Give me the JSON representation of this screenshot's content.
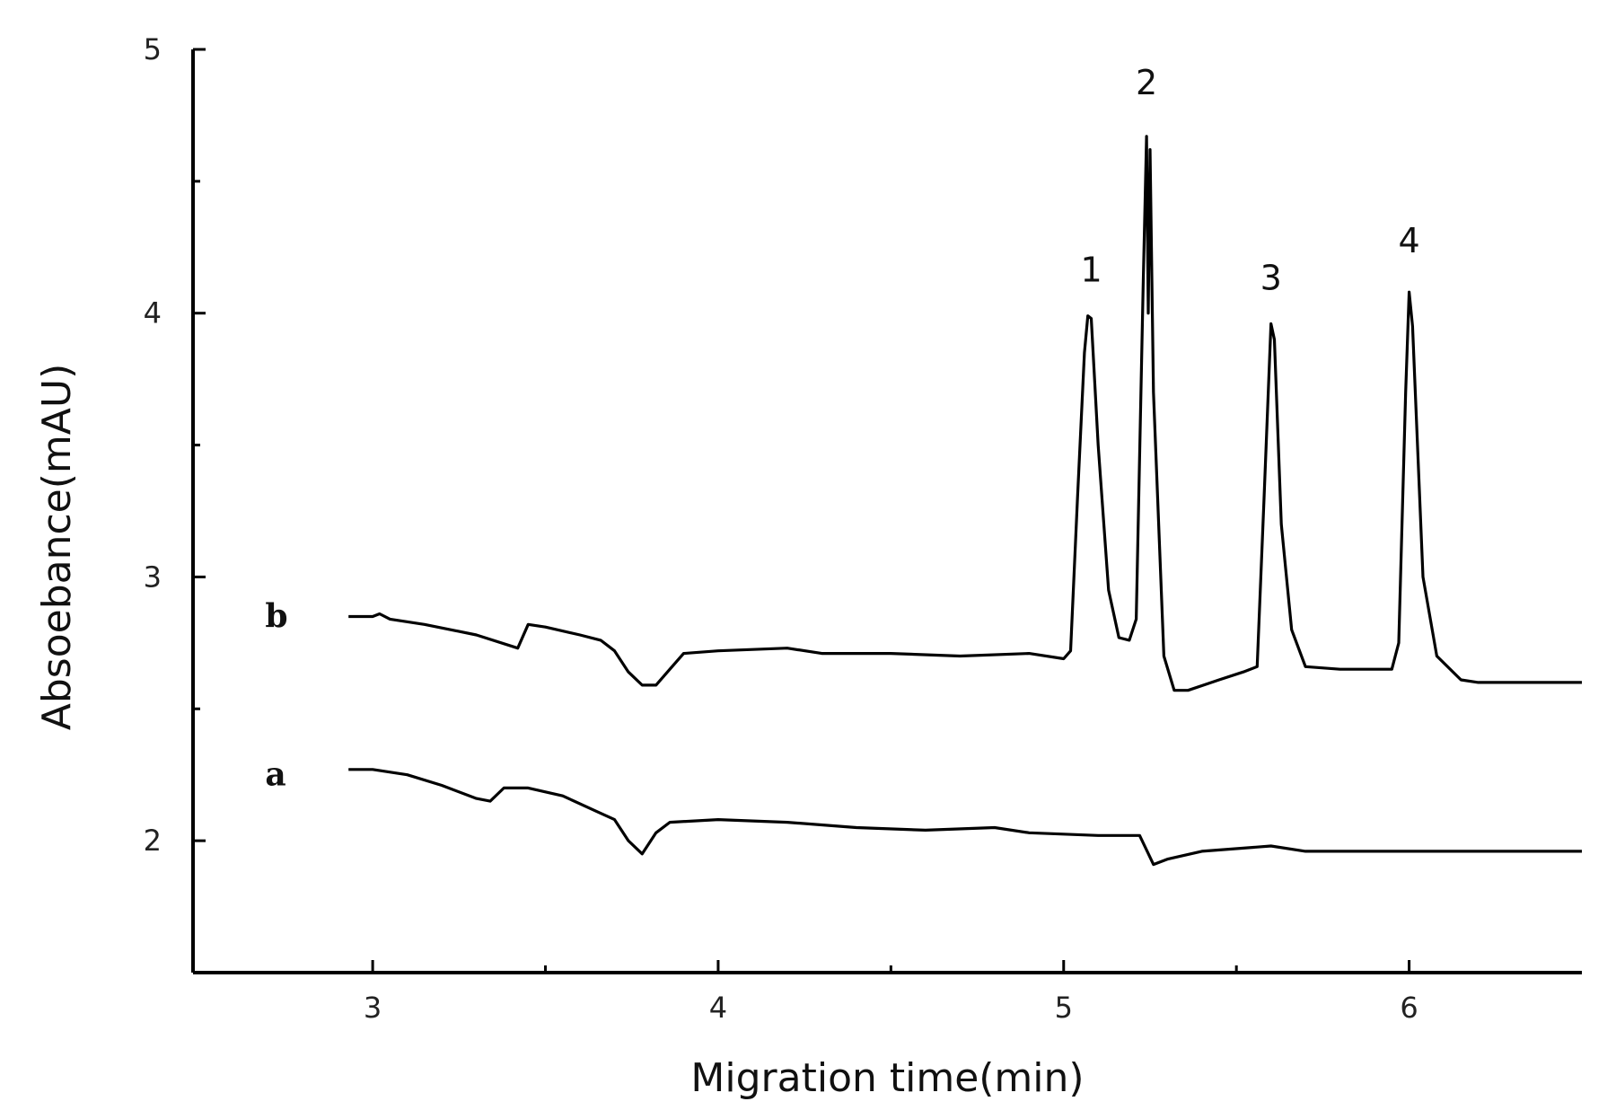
{
  "chart_data": {
    "type": "line",
    "title": "",
    "xlabel": "Migration time(min)",
    "ylabel": "Absoebance(mAU)",
    "xlim": [
      2.48,
      6.5
    ],
    "ylim": [
      1.5,
      5.0
    ],
    "x_ticks": [
      3,
      4,
      5,
      6
    ],
    "x_tick_labels": [
      "3",
      "4",
      "5",
      "6"
    ],
    "x_minor_ticks": [
      3.5,
      4.5,
      5.5
    ],
    "y_ticks": [
      2,
      3,
      4,
      5
    ],
    "y_tick_labels": [
      "2",
      "3",
      "4",
      "5"
    ],
    "y_minor_ticks": [
      2.5,
      3.5,
      4.5
    ],
    "grid": false,
    "series": [
      {
        "name": "b",
        "label_at": [
          2.72,
          2.85
        ],
        "points": [
          [
            2.93,
            2.85
          ],
          [
            3.0,
            2.85
          ],
          [
            3.02,
            2.86
          ],
          [
            3.05,
            2.84
          ],
          [
            3.15,
            2.82
          ],
          [
            3.3,
            2.78
          ],
          [
            3.42,
            2.73
          ],
          [
            3.45,
            2.82
          ],
          [
            3.5,
            2.81
          ],
          [
            3.6,
            2.78
          ],
          [
            3.66,
            2.76
          ],
          [
            3.7,
            2.72
          ],
          [
            3.74,
            2.64
          ],
          [
            3.78,
            2.59
          ],
          [
            3.82,
            2.59
          ],
          [
            3.86,
            2.65
          ],
          [
            3.9,
            2.71
          ],
          [
            4.0,
            2.72
          ],
          [
            4.2,
            2.73
          ],
          [
            4.3,
            2.71
          ],
          [
            4.5,
            2.71
          ],
          [
            4.7,
            2.7
          ],
          [
            4.9,
            2.71
          ],
          [
            5.0,
            2.69
          ],
          [
            5.02,
            2.72
          ],
          [
            5.04,
            3.3
          ],
          [
            5.06,
            3.85
          ],
          [
            5.07,
            3.99
          ],
          [
            5.08,
            3.98
          ],
          [
            5.1,
            3.5
          ],
          [
            5.13,
            2.95
          ],
          [
            5.16,
            2.77
          ],
          [
            5.19,
            2.76
          ],
          [
            5.21,
            2.84
          ],
          [
            5.23,
            4.1
          ],
          [
            5.24,
            4.67
          ],
          [
            5.245,
            4.0
          ],
          [
            5.25,
            4.62
          ],
          [
            5.26,
            3.7
          ],
          [
            5.29,
            2.7
          ],
          [
            5.32,
            2.57
          ],
          [
            5.36,
            2.57
          ],
          [
            5.45,
            2.61
          ],
          [
            5.52,
            2.64
          ],
          [
            5.56,
            2.66
          ],
          [
            5.58,
            3.3
          ],
          [
            5.6,
            3.96
          ],
          [
            5.61,
            3.9
          ],
          [
            5.63,
            3.2
          ],
          [
            5.66,
            2.8
          ],
          [
            5.7,
            2.66
          ],
          [
            5.8,
            2.65
          ],
          [
            5.95,
            2.65
          ],
          [
            5.97,
            2.75
          ],
          [
            5.99,
            3.7
          ],
          [
            6.0,
            4.08
          ],
          [
            6.01,
            3.95
          ],
          [
            6.04,
            3.0
          ],
          [
            6.08,
            2.7
          ],
          [
            6.15,
            2.61
          ],
          [
            6.2,
            2.6
          ],
          [
            6.5,
            2.6
          ]
        ]
      },
      {
        "name": "a",
        "label_at": [
          2.72,
          2.25
        ],
        "points": [
          [
            2.93,
            2.27
          ],
          [
            3.0,
            2.27
          ],
          [
            3.1,
            2.25
          ],
          [
            3.2,
            2.21
          ],
          [
            3.3,
            2.16
          ],
          [
            3.34,
            2.15
          ],
          [
            3.38,
            2.2
          ],
          [
            3.45,
            2.2
          ],
          [
            3.55,
            2.17
          ],
          [
            3.65,
            2.11
          ],
          [
            3.7,
            2.08
          ],
          [
            3.74,
            2.0
          ],
          [
            3.78,
            1.95
          ],
          [
            3.82,
            2.03
          ],
          [
            3.86,
            2.07
          ],
          [
            4.0,
            2.08
          ],
          [
            4.2,
            2.07
          ],
          [
            4.4,
            2.05
          ],
          [
            4.6,
            2.04
          ],
          [
            4.8,
            2.05
          ],
          [
            4.9,
            2.03
          ],
          [
            5.1,
            2.02
          ],
          [
            5.22,
            2.02
          ],
          [
            5.26,
            1.91
          ],
          [
            5.3,
            1.93
          ],
          [
            5.4,
            1.96
          ],
          [
            5.6,
            1.98
          ],
          [
            5.7,
            1.96
          ],
          [
            5.8,
            1.96
          ],
          [
            6.5,
            1.96
          ]
        ]
      }
    ],
    "annotations": [
      {
        "text": "1",
        "x": 5.08,
        "y": 4.12
      },
      {
        "text": "2",
        "x": 5.24,
        "y": 4.83
      },
      {
        "text": "3",
        "x": 5.6,
        "y": 4.09
      },
      {
        "text": "4",
        "x": 6.0,
        "y": 4.23
      }
    ],
    "colors": {
      "line": "#000000",
      "axis": "#000000",
      "text": "#111111"
    }
  }
}
